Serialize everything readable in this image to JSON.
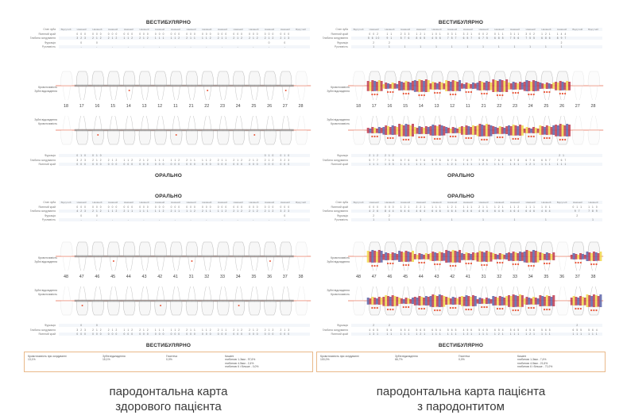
{
  "section_labels": {
    "vestibular": "ВЕСТИБУЛЯРНО",
    "oral": "ОРАЛЬНО"
  },
  "caption_left": {
    "line1": "пародонтальна карта",
    "line2": "здорового пацієнта"
  },
  "caption_right": {
    "line1": "пародонтальна карта пацієнта",
    "line2": "з пародонтитом"
  },
  "upper_teeth": [
    "18",
    "17",
    "16",
    "15",
    "14",
    "13",
    "12",
    "11",
    "21",
    "22",
    "23",
    "24",
    "25",
    "26",
    "27",
    "28"
  ],
  "lower_teeth": [
    "48",
    "47",
    "46",
    "45",
    "44",
    "43",
    "42",
    "41",
    "31",
    "32",
    "33",
    "34",
    "35",
    "36",
    "37",
    "38"
  ],
  "bleed_label": "Кровоточивість",
  "plaque_label": "Зубні відкладення",
  "left": {
    "upper_states": [
      "Відсутній",
      "Наявний",
      "Наявний",
      "Наявний",
      "Наявний",
      "Наявний",
      "Наявний",
      "Наявний",
      "Наявний",
      "Наявний",
      "Наявний",
      "Наявний",
      "Наявний",
      "Наявний",
      "Наявний",
      "Відсутній"
    ],
    "lower_states": [
      "Відсутній",
      "Наявний",
      "Наявний",
      "Наявний",
      "Наявний",
      "Наявний",
      "Наявний",
      "Наявний",
      "Наявний",
      "Наявний",
      "Наявний",
      "Наявний",
      "Наявний",
      "Наявний",
      "Наявний",
      "Відсутній"
    ],
    "upper_vest_rows": [
      {
        "label": "Стан зуба",
        "vals": [
          "",
          "",
          "",
          "",
          "",
          "",
          "",
          "",
          "",
          "",
          "",
          "",
          "",
          "",
          "",
          ""
        ]
      },
      {
        "label": "Ясенний край",
        "vals": [
          "",
          "0 0 0",
          "0 0 0",
          "0 0 0",
          "0 0 0",
          "0 0 0",
          "0 0 0",
          "0 0 0",
          "0 0 0",
          "0 0 0",
          "0 0 0",
          "0 0 0",
          "0 0 0",
          "0 0 0",
          "0 0 0",
          ""
        ]
      },
      {
        "label": "Глибина зондування",
        "vals": [
          "",
          "3 2 3",
          "2 1 2",
          "2 1 2",
          "1 1 2",
          "2 1 2",
          "1 1 1",
          "1 1 2",
          "2 1 1",
          "1 1 2",
          "2 1 1",
          "2 1 2",
          "2 1 2",
          "2 1 2",
          "2 1 3",
          ""
        ]
      },
      {
        "label": "Фуркація",
        "vals": [
          "",
          "0",
          "0",
          "",
          "",
          "",
          "",
          "",
          "",
          "",
          "",
          "",
          "",
          "0",
          "0",
          ""
        ]
      },
      {
        "label": "Рухливість",
        "vals": [
          "",
          "-",
          "-",
          "-",
          "-",
          "-",
          "-",
          "-",
          "-",
          "-",
          "-",
          "-",
          "-",
          "-",
          "-",
          ""
        ]
      }
    ],
    "upper_oral_rows": [
      {
        "label": "Фуркація",
        "vals": [
          "",
          "0 1 0",
          "0 1 0",
          "",
          "",
          "",
          "",
          "",
          "",
          "",
          "",
          "",
          "",
          "0 1 0",
          "0 1 0",
          ""
        ]
      },
      {
        "label": "Глибина зондування",
        "vals": [
          "",
          "3 2 3",
          "2 1 2",
          "2 1 2",
          "1 1 2",
          "2 1 2",
          "1 1 1",
          "1 1 2",
          "2 1 1",
          "1 1 2",
          "2 1 1",
          "2 1 2",
          "2 1 2",
          "2 1 2",
          "3 2 3",
          ""
        ]
      },
      {
        "label": "Ясенний край",
        "vals": [
          "",
          "0 0 0",
          "0 0 0",
          "0 0 0",
          "0 0 0",
          "0 0 0",
          "0 0 0",
          "0 0 0",
          "0 0 0",
          "0 0 0",
          "0 0 0",
          "0 0 0",
          "0 0 0",
          "0 0 0",
          "0 0 0",
          ""
        ]
      }
    ],
    "lower_oral_rows": [
      {
        "label": "Стан зуба",
        "vals": [
          "",
          "",
          "",
          "",
          "",
          "",
          "",
          "",
          "",
          "",
          "",
          "",
          "",
          "",
          "",
          ""
        ]
      },
      {
        "label": "Ясенний край",
        "vals": [
          "",
          "0 0 0",
          "0 0 0",
          "0 0 0",
          "0 0 0",
          "0 0 0",
          "0 0 0",
          "0 0 0",
          "0 0 0",
          "0 0 0",
          "0 0 0",
          "0 0 0",
          "0 0 0",
          "0 0 0",
          "0 0 0",
          ""
        ]
      },
      {
        "label": "Глибина зондування",
        "vals": [
          "",
          "4 2 3",
          "2 1 2",
          "1 1 2",
          "2 1 1",
          "1 1 1",
          "1 1 2",
          "2 1 1",
          "1 1 2",
          "2 1 1",
          "1 1 2",
          "2 1 2",
          "2 1 2",
          "2 1 2",
          "3 2 3",
          ""
        ]
      },
      {
        "label": "Фуркація",
        "vals": [
          "",
          "0",
          "0",
          "",
          "",
          "",
          "",
          "",
          "",
          "",
          "",
          "",
          "",
          "",
          "0",
          ""
        ]
      },
      {
        "label": "Рухливість",
        "vals": [
          "",
          "-",
          "-",
          "-",
          "-",
          "-",
          "-",
          "-",
          "-",
          "-",
          "-",
          "-",
          "-",
          "-",
          "-",
          ""
        ]
      }
    ],
    "lower_vest_rows": [
      {
        "label": "Фуркація",
        "vals": [
          "",
          "0",
          "0",
          "",
          "",
          "",
          "",
          "",
          "",
          "",
          "",
          "",
          "",
          "",
          "",
          ""
        ]
      },
      {
        "label": "Глибина зондування",
        "vals": [
          "",
          "3 2 3",
          "2 1 2",
          "2 1 2",
          "1 1 2",
          "2 1 2",
          "1 1 1",
          "1 1 2",
          "2 1 1",
          "1 1 2",
          "2 1 1",
          "2 1 2",
          "2 1 2",
          "2 1 2",
          "2 1 3",
          ""
        ]
      },
      {
        "label": "Ясенний край",
        "vals": [
          "",
          "0 0 0",
          "0 0 0",
          "0 0 0",
          "0 0 0",
          "0 0 0",
          "0 0 0",
          "0 0 0",
          "0 0 0",
          "0 0 0",
          "0 0 0",
          "0 0 0",
          "0 0 0",
          "0 0 0",
          "0 0 0",
          ""
        ]
      }
    ],
    "summary": {
      "bleed_label": "Кровоточивість при зондуванні",
      "bleed_val": "13,1%",
      "plaque_label": "Зубні відкладення",
      "plaque_val": "15,1%",
      "supp_label": "Гноєтеча",
      "supp_val": "0,0%",
      "pockets_label": "Кишені",
      "p1": "глибиною 1-3мм - 97,6%",
      "p2": "глибиною 4-5мм - 2,4%",
      "p3": "глибиною 6 і більше - 0,0%"
    }
  },
  "right": {
    "upper_states": [
      "Відсутній",
      "Наявний",
      "Наявний",
      "Наявний",
      "Наявний",
      "Наявний",
      "Наявний",
      "Наявний",
      "Наявний",
      "Наявний",
      "Наявний",
      "Наявний",
      "Наявний",
      "Наявний",
      "Відсутній",
      "Відсутній"
    ],
    "lower_states": [
      "Відсутній",
      "Наявний",
      "Наявний",
      "Наявний",
      "Наявний",
      "Наявний",
      "Наявний",
      "Наявний",
      "Наявний",
      "Наявний",
      "Наявний",
      "Наявний",
      "Наявний",
      "Відсутній",
      "Наявний",
      "Наявний"
    ],
    "upper_vest_rows": [
      {
        "label": "Стан зуба",
        "vals": [
          "",
          "",
          "",
          "",
          "",
          "",
          "",
          "",
          "",
          "",
          "",
          "",
          "",
          "",
          "",
          ""
        ]
      },
      {
        "label": "Ясенний край",
        "vals": [
          "",
          "0 0 2",
          "1 1",
          "2 3 3",
          "1 2 1",
          "1 0 1",
          "0 3 1",
          "3 2 1",
          "0 0 2",
          "0 1 1",
          "3 1 1",
          "3 0 2",
          "1 2 1",
          "1 4 4",
          "",
          ""
        ]
      },
      {
        "label": "Глибина зондування",
        "vals": [
          "",
          "5 6 10",
          "9 1",
          "5 7 6",
          "8 6 5",
          "4 5 6",
          "7 5 7",
          "6 5 7",
          "6 7 5",
          "6 8 5",
          "7 5 6",
          "7 5 5",
          "6 8 6",
          "8 9 7",
          "",
          ""
        ]
      },
      {
        "label": "Фуркація",
        "vals": [
          "",
          "2",
          "2",
          "",
          "",
          "",
          "",
          "",
          "",
          "",
          "",
          "",
          "",
          "2",
          "",
          ""
        ]
      },
      {
        "label": "Рухливість",
        "vals": [
          "",
          "1",
          "1",
          "1",
          "1",
          "1",
          "1",
          "1",
          "1",
          "1",
          "1",
          "1",
          "1",
          "1",
          "",
          ""
        ]
      }
    ],
    "upper_oral_rows": [
      {
        "label": "Фуркація",
        "vals": [
          "",
          "2 1 2",
          "2 1 2",
          "",
          "",
          "",
          "",
          "",
          "",
          "",
          "",
          "",
          "",
          "2 1",
          "",
          ""
        ]
      },
      {
        "label": "Глибина зондування",
        "vals": [
          "",
          "5 7 7",
          "7 1 6",
          "6 7 6",
          "6 7 6",
          "5 7 6",
          "6 7 6",
          "7 6 7",
          "7 8 6",
          "7 6 7",
          "6 7 8",
          "6 7 6",
          "6 5 7",
          "7 6 7",
          "",
          ""
        ]
      },
      {
        "label": "Ясенний край",
        "vals": [
          "",
          "1 1 1",
          "1 3 3",
          "1 1 1",
          "1 1 1",
          "1 1 1",
          "1 2 1",
          "1 1 1",
          "1 2 1",
          "1 1 1",
          "1 3 1",
          "1 2 1",
          "1 1 1",
          "1 1 1",
          "",
          ""
        ]
      }
    ],
    "lower_oral_rows": [
      {
        "label": "Стан зуба",
        "vals": [
          "",
          "",
          "",
          "",
          "",
          "",
          "",
          "",
          "",
          "",
          "",
          "",
          "",
          "",
          "",
          ""
        ]
      },
      {
        "label": "Ясенний край",
        "vals": [
          "",
          "0 0 0",
          "0 0 0",
          "1 2 1",
          "2 2 1",
          "1 1 1",
          "1 2 1",
          "1 1 1",
          "2 1 1",
          "1 2 1",
          "1 1 2",
          "1 1 1",
          "1 0 1",
          "",
          "0 1 1",
          "1 1 0"
        ]
      },
      {
        "label": "Глибина зондування",
        "vals": [
          "",
          "4 2 6",
          "8 4 4",
          "6 4 6",
          "4 6 4",
          "6 4 6",
          "4 6 4",
          "6 4 6",
          "4 6 4",
          "6 4 6",
          "4 6 4",
          "6 4 6",
          "4 6 4",
          "",
          "9 7",
          "7 8 9"
        ]
      },
      {
        "label": "Фуркація",
        "vals": [
          "",
          "2",
          "2",
          "",
          "",
          "",
          "",
          "",
          "",
          "",
          "",
          "",
          "",
          "",
          "2",
          ""
        ]
      },
      {
        "label": "Рухливість",
        "vals": [
          "",
          "1",
          "1",
          "",
          "1",
          "",
          "1",
          "",
          "1",
          "",
          "1",
          "",
          "1",
          "",
          "",
          "1"
        ]
      }
    ],
    "lower_vest_rows": [
      {
        "label": "Фуркація",
        "vals": [
          "",
          "2",
          "2",
          "",
          "",
          "",
          "",
          "",
          "",
          "",
          "",
          "",
          "",
          "",
          "2",
          ""
        ]
      },
      {
        "label": "Глибина зондування",
        "vals": [
          "",
          "4 6 5",
          "5 6",
          "6 5 4",
          "5 6 5",
          "6 5 4",
          "5 6 5",
          "4 5 6",
          "5 4 5",
          "6 5 4",
          "5 6 5",
          "4 5 6",
          "5 6 5",
          "",
          "6 5 5",
          "5 6 4"
        ]
      },
      {
        "label": "Ясенний край",
        "vals": [
          "",
          "1 3 1",
          "1 1",
          "1 1 1",
          "1 2 1",
          "1 1 1",
          "1 1 1",
          "1 2 1",
          "1 1 1",
          "1 2 1",
          "1 1 1",
          "1 2 1",
          "1 1 1",
          "",
          "1 1 1",
          "1 1 1"
        ]
      }
    ],
    "summary": {
      "bleed_label": "Кровоточивість при зондуванні",
      "bleed_val": "100,0%",
      "plaque_label": "Зубні відкладення",
      "plaque_val": "66,7%",
      "supp_label": "Гноєтеча",
      "supp_val": "0,0%",
      "pockets_label": "Кишені",
      "p1": "глибиною 1-3мм - 7,4%",
      "p2": "глибиною 4-5мм - 21,6%",
      "p3": "глибиною 6 і більше - 71,0%"
    }
  },
  "colors": {
    "gingiva": "#e86a4f",
    "band_grey": "#8a8a8a",
    "band_red": "#c0394f",
    "band_blue": "#5a63a8",
    "band_yellow": "#f2d84a",
    "bleed_dot": "#e8573a",
    "box_border": "#e9b98a"
  }
}
